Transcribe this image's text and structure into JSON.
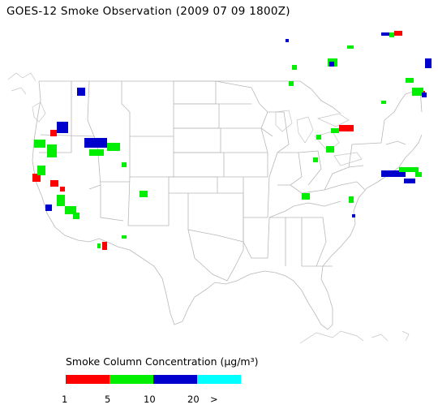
{
  "title": "GOES-12 Smoke Observation (2009 07 09  1800Z)",
  "legend": {
    "title": "Smoke Column Concentration (µg/m³)",
    "segments": [
      {
        "color": "#ff0000"
      },
      {
        "color": "#00ee00"
      },
      {
        "color": "#0000cc"
      },
      {
        "color": "#00ffff"
      }
    ],
    "ticks": [
      "1",
      "5",
      "10",
      "20",
      ">"
    ]
  },
  "map": {
    "line_color": "#b8b8b8",
    "smoke_colors": {
      "low": "#ff0000",
      "mid": "#00ee00",
      "high": "#0000cc",
      "max": "#00ffff"
    }
  }
}
